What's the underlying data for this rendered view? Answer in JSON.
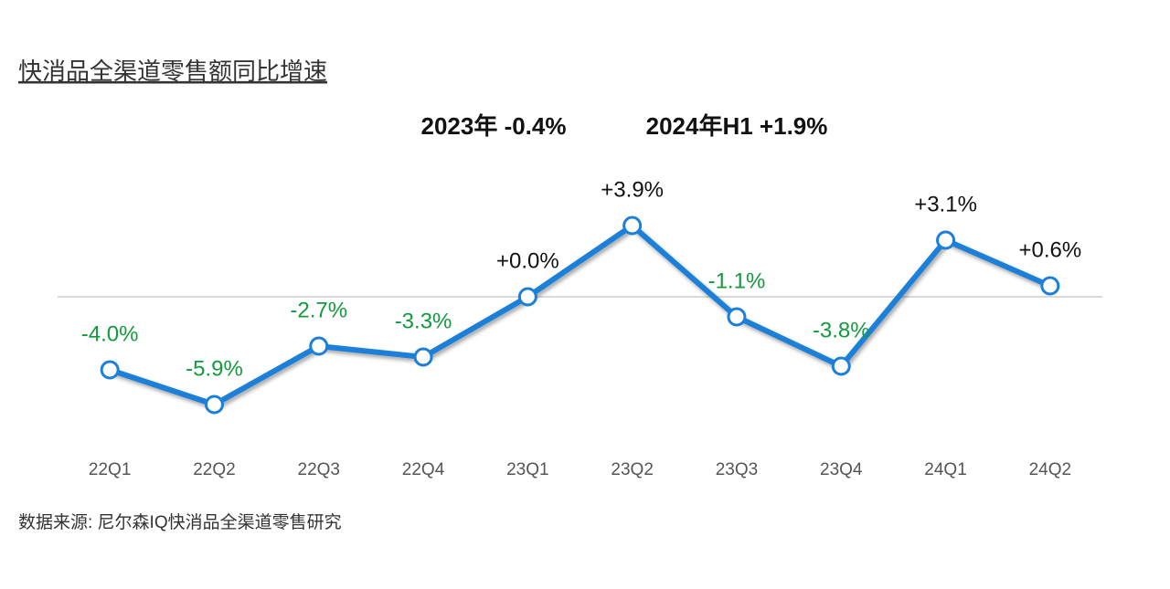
{
  "chart_data": {
    "type": "line",
    "title": "快消品全渠道零售额同比增速",
    "annotations": [
      "2023年 -0.4%",
      "2024年H1 +1.9%"
    ],
    "source": "数据来源: 尼尔森IQ快消品全渠道零售研究",
    "categories": [
      "22Q1",
      "22Q2",
      "22Q3",
      "22Q4",
      "23Q1",
      "23Q2",
      "23Q3",
      "23Q4",
      "24Q1",
      "24Q2"
    ],
    "values": [
      -4.0,
      -5.9,
      -2.7,
      -3.3,
      0.0,
      3.9,
      -1.1,
      -3.8,
      3.1,
      0.6
    ],
    "value_labels": [
      "-4.0%",
      "-5.9%",
      "-2.7%",
      "-3.3%",
      "+0.0%",
      "+3.9%",
      "-1.1%",
      "-3.8%",
      "+3.1%",
      "+0.6%"
    ],
    "color": "#1c7fd8",
    "positive_label_color": "#111111",
    "negative_label_color": "#139a3e",
    "ylim": [
      -7,
      5
    ],
    "zero_line": true
  }
}
